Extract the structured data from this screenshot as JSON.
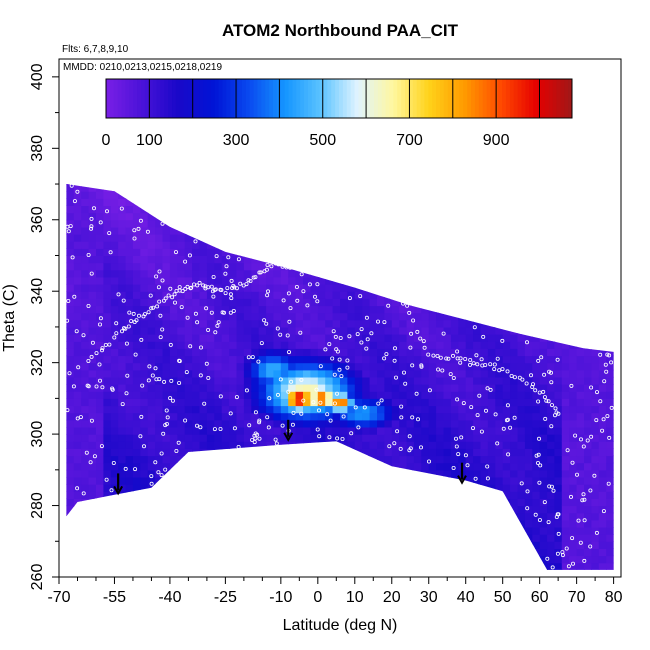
{
  "chart_data": {
    "type": "heatmap",
    "title": "ATOM2 Northbound PAA_CIT",
    "flights_label": "Flts: 6,7,8,9,10",
    "dates_label": "MMDD: 0210,0213,0215,0218,0219",
    "xlabel": "Latitude (deg N)",
    "ylabel": "Theta (C)",
    "xlim": [
      -70,
      82
    ],
    "ylim": [
      260,
      405
    ],
    "x_ticks": [
      -70,
      -55,
      -40,
      -25,
      -10,
      0,
      10,
      20,
      30,
      40,
      50,
      60,
      70,
      80
    ],
    "y_ticks": [
      260,
      280,
      300,
      320,
      340,
      360,
      380,
      400
    ],
    "colorbar": {
      "range": [
        0,
        1075
      ],
      "ticks": [
        0,
        100,
        300,
        500,
        700,
        900
      ],
      "colors": [
        "#7a1fe6",
        "#4a12d8",
        "#1a08c9",
        "#0014d6",
        "#0a4bf0",
        "#1596ff",
        "#5cc4ff",
        "#dff3ff",
        "#fff7a0",
        "#ffd21a",
        "#ff9a00",
        "#ff4a00",
        "#e60000",
        "#a01818"
      ]
    },
    "top_boundary": [
      [
        -68,
        370
      ],
      [
        -55,
        368
      ],
      [
        -40,
        358
      ],
      [
        -25,
        351
      ],
      [
        -10,
        347
      ],
      [
        0,
        344
      ],
      [
        10,
        341
      ],
      [
        25,
        336
      ],
      [
        40,
        332
      ],
      [
        55,
        328
      ],
      [
        72,
        324
      ],
      [
        80,
        323
      ]
    ],
    "bottom_boundary": [
      [
        80,
        262
      ],
      [
        75,
        262
      ],
      [
        62,
        262
      ],
      [
        50,
        284
      ],
      [
        40,
        287
      ],
      [
        20,
        291
      ],
      [
        5,
        298
      ],
      [
        -10,
        297
      ],
      [
        -35,
        295
      ],
      [
        -45,
        285
      ],
      [
        -55,
        283
      ],
      [
        -65,
        281
      ],
      [
        -68,
        277
      ]
    ],
    "hotspots": [
      {
        "lat": -5,
        "theta": 310,
        "value": 1000,
        "r_lat": 5,
        "r_theta": 4
      },
      {
        "lat": 1,
        "theta": 310,
        "value": 950,
        "r_lat": 4,
        "r_theta": 3
      },
      {
        "lat": 6,
        "theta": 309,
        "value": 900,
        "r_lat": 4,
        "r_theta": 3
      },
      {
        "lat": -3,
        "theta": 312,
        "value": 650,
        "r_lat": 14,
        "r_theta": 9
      },
      {
        "lat": -12,
        "theta": 318,
        "value": 450,
        "r_lat": 8,
        "r_theta": 6
      },
      {
        "lat": 12,
        "theta": 306,
        "value": 420,
        "r_lat": 10,
        "r_theta": 5
      }
    ],
    "tropopause_track": [
      [
        -62,
        320
      ],
      [
        -52,
        330
      ],
      [
        -45,
        335
      ],
      [
        -38,
        340
      ],
      [
        -32,
        342
      ],
      [
        -25,
        340
      ],
      [
        -18,
        343
      ],
      [
        -12,
        348
      ],
      [
        -8,
        347
      ],
      [
        -2,
        346
      ],
      [
        5,
        345
      ],
      [
        12,
        344
      ],
      [
        20,
        343
      ],
      [
        30,
        322
      ],
      [
        40,
        321
      ],
      [
        50,
        318
      ],
      [
        60,
        312
      ],
      [
        66,
        305
      ]
    ],
    "arrows": [
      [
        -54,
        289
      ],
      [
        -8,
        304
      ],
      [
        39,
        292
      ]
    ]
  }
}
